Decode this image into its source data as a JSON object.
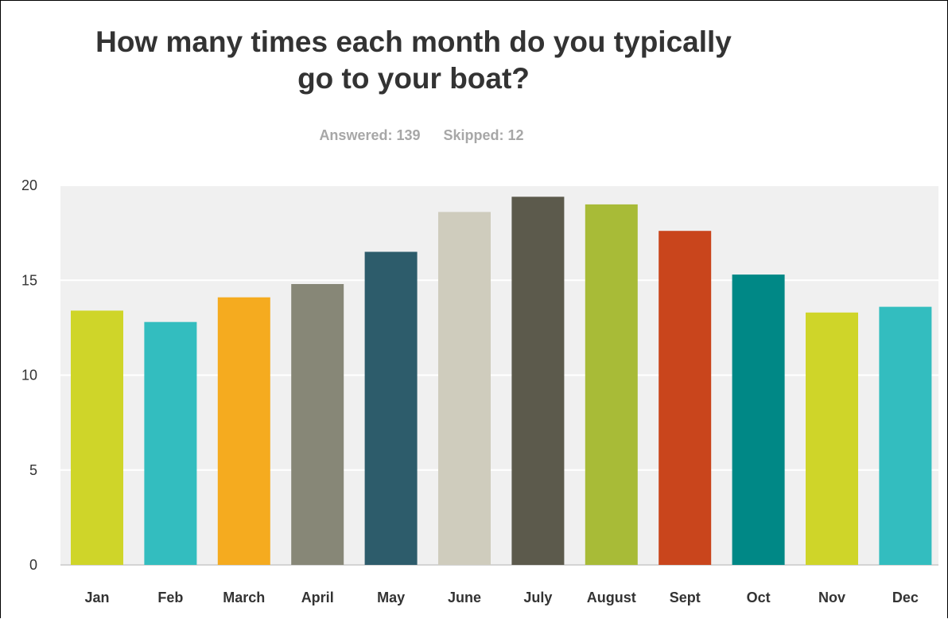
{
  "question": {
    "title_line1": "How many times each month do you typically",
    "title_line2": "go to your boat?"
  },
  "stats": {
    "answered": "Answered: 139",
    "skipped": "Skipped: 12"
  },
  "chart_data": {
    "type": "bar",
    "categories": [
      "Jan",
      "Feb",
      "March",
      "April",
      "May",
      "June",
      "July",
      "August",
      "Sept",
      "Oct",
      "Nov",
      "Dec"
    ],
    "values": [
      13.4,
      12.8,
      14.1,
      14.8,
      16.5,
      18.6,
      19.4,
      19.0,
      17.6,
      15.3,
      13.3,
      13.6
    ],
    "colors": [
      "#cfd529",
      "#33bdbf",
      "#f5ab1f",
      "#878777",
      "#2d5c6b",
      "#cfccbd",
      "#5c5a4c",
      "#a8bb37",
      "#c9451c",
      "#008886",
      "#cfd529",
      "#33bdbf"
    ],
    "yticks": [
      0,
      5,
      10,
      15,
      20
    ],
    "ylim": [
      0,
      20
    ],
    "grid": true,
    "plot_background": "#f0f0f0",
    "xlabel": "",
    "ylabel": ""
  }
}
